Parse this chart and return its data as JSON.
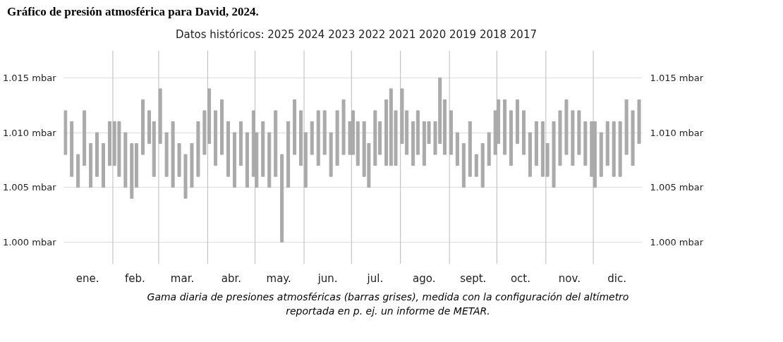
{
  "chart_data": {
    "type": "bar",
    "title": "Gráfico de presión atmosférica para David, 2024.",
    "subtitle": "Datos históricos: 2025 2024 2023 2022 2021 2020 2019 2018 2017",
    "annotations": [
      "Gama diaria de presiones atmosféricas (barras grises), medida con la configuración del altímetro reportada en p. ej. un informe de METAR."
    ],
    "x": [
      "2024-01-02",
      "2024-01-06",
      "2024-01-10",
      "2024-01-14",
      "2024-01-18",
      "2024-01-22",
      "2024-01-26",
      "2024-01-30",
      "2024-02-02",
      "2024-02-05",
      "2024-02-09",
      "2024-02-13",
      "2024-02-16",
      "2024-02-20",
      "2024-02-24",
      "2024-02-27",
      "2024-03-02",
      "2024-03-06",
      "2024-03-10",
      "2024-03-14",
      "2024-03-18",
      "2024-03-22",
      "2024-03-26",
      "2024-03-30",
      "2024-04-02",
      "2024-04-06",
      "2024-04-10",
      "2024-04-14",
      "2024-04-18",
      "2024-04-22",
      "2024-04-26",
      "2024-04-30",
      "2024-05-02",
      "2024-05-06",
      "2024-05-10",
      "2024-05-14",
      "2024-05-18",
      "2024-05-22",
      "2024-05-26",
      "2024-05-30",
      "2024-06-02",
      "2024-06-06",
      "2024-06-10",
      "2024-06-14",
      "2024-06-18",
      "2024-06-22",
      "2024-06-26",
      "2024-06-30",
      "2024-07-02",
      "2024-07-05",
      "2024-07-09",
      "2024-07-12",
      "2024-07-16",
      "2024-07-19",
      "2024-07-23",
      "2024-07-26",
      "2024-07-29",
      "2024-08-02",
      "2024-08-05",
      "2024-08-09",
      "2024-08-12",
      "2024-08-16",
      "2024-08-19",
      "2024-08-23",
      "2024-08-26",
      "2024-08-29",
      "2024-09-02",
      "2024-09-06",
      "2024-09-10",
      "2024-09-14",
      "2024-09-18",
      "2024-09-22",
      "2024-09-26",
      "2024-09-30",
      "2024-10-02",
      "2024-10-06",
      "2024-10-10",
      "2024-10-14",
      "2024-10-18",
      "2024-10-22",
      "2024-10-26",
      "2024-10-30",
      "2024-11-02",
      "2024-11-06",
      "2024-11-10",
      "2024-11-14",
      "2024-11-18",
      "2024-11-22",
      "2024-11-26",
      "2024-11-30",
      "2024-12-02",
      "2024-12-06",
      "2024-12-10",
      "2024-12-14",
      "2024-12-18",
      "2024-12-22",
      "2024-12-26",
      "2024-12-30"
    ],
    "base": [
      1008,
      1006,
      1005,
      1007,
      1005,
      1006,
      1005,
      1007,
      1007,
      1006,
      1005,
      1004,
      1005,
      1008,
      1009,
      1006,
      1009,
      1006,
      1005,
      1006,
      1004,
      1005,
      1006,
      1008,
      1009,
      1007,
      1008,
      1006,
      1005,
      1007,
      1005,
      1006,
      1005,
      1006,
      1005,
      1006,
      1000,
      1005,
      1008,
      1007,
      1005,
      1008,
      1007,
      1008,
      1006,
      1007,
      1008,
      1008,
      1008,
      1007,
      1006,
      1005,
      1007,
      1008,
      1007,
      1007,
      1007,
      1009,
      1008,
      1007,
      1008,
      1007,
      1009,
      1008,
      1009,
      1008,
      1008,
      1007,
      1005,
      1006,
      1006,
      1005,
      1007,
      1008,
      1009,
      1008,
      1007,
      1009,
      1008,
      1006,
      1007,
      1006,
      1006,
      1005,
      1007,
      1008,
      1007,
      1008,
      1007,
      1006,
      1005,
      1006,
      1007,
      1006,
      1006,
      1008,
      1007,
      1009
    ],
    "values": [
      4,
      5,
      3,
      5,
      4,
      4,
      4,
      4,
      4,
      5,
      5,
      5,
      4,
      5,
      3,
      5,
      5,
      4,
      6,
      3,
      4,
      4,
      5,
      4,
      5,
      5,
      5,
      5,
      5,
      4,
      5,
      6,
      5,
      5,
      5,
      6,
      8,
      6,
      5,
      5,
      5,
      3,
      5,
      4,
      4,
      5,
      5,
      3,
      4,
      4,
      5,
      4,
      5,
      3,
      6,
      7,
      5,
      5,
      4,
      4,
      4,
      4,
      2,
      3,
      6,
      5,
      4,
      3,
      4,
      5,
      2,
      4,
      3,
      4,
      4,
      5,
      5,
      4,
      4,
      4,
      4,
      5,
      3,
      6,
      5,
      5,
      5,
      4,
      4,
      5,
      6,
      4,
      4,
      5,
      5,
      5,
      5,
      4
    ],
    "color": "#aaaaaa",
    "xlim": [
      "2024-01-01",
      "2025-01-01"
    ],
    "xticks": [
      {
        "value": "2024-01-16",
        "label": "ene."
      },
      {
        "value": "2024-02-01",
        "label": null
      },
      {
        "value": "2024-02-15",
        "label": "feb."
      },
      {
        "value": "2024-03-01",
        "label": null
      },
      {
        "value": "2024-03-16",
        "label": "mar."
      },
      {
        "value": "2024-04-01",
        "label": null
      },
      {
        "value": "2024-04-16",
        "label": "abr."
      },
      {
        "value": "2024-05-01",
        "label": null
      },
      {
        "value": "2024-05-16",
        "label": "may."
      },
      {
        "value": "2024-06-01",
        "label": null
      },
      {
        "value": "2024-06-16",
        "label": "jun."
      },
      {
        "value": "2024-07-01",
        "label": null
      },
      {
        "value": "2024-07-16",
        "label": "jul."
      },
      {
        "value": "2024-08-01",
        "label": null
      },
      {
        "value": "2024-08-16",
        "label": "ago."
      },
      {
        "value": "2024-09-01",
        "label": null
      },
      {
        "value": "2024-09-16",
        "label": "sept."
      },
      {
        "value": "2024-10-01",
        "label": null
      },
      {
        "value": "2024-10-16",
        "label": "oct."
      },
      {
        "value": "2024-11-01",
        "label": null
      },
      {
        "value": "2024-11-16",
        "label": "nov."
      },
      {
        "value": "2024-12-01",
        "label": null
      },
      {
        "value": "2024-12-16",
        "label": "dic."
      }
    ],
    "ylim": [
      998,
      1017.5
    ],
    "yticks": [
      {
        "value": 1000,
        "label": "1.000 mbar"
      },
      {
        "value": 1005,
        "label": "1.005 mbar"
      },
      {
        "value": 1010,
        "label": "1.010 mbar"
      },
      {
        "value": 1015,
        "label": "1.015 mbar"
      }
    ],
    "y2lim": [
      998,
      1017.5
    ],
    "y2ticks": [
      {
        "value": 1000,
        "label": "1.000 mbar"
      },
      {
        "value": 1005,
        "label": "1.005 mbar"
      },
      {
        "value": 1010,
        "label": "1.010 mbar"
      },
      {
        "value": 1015,
        "label": "1.015 mbar"
      }
    ],
    "grid": true
  }
}
